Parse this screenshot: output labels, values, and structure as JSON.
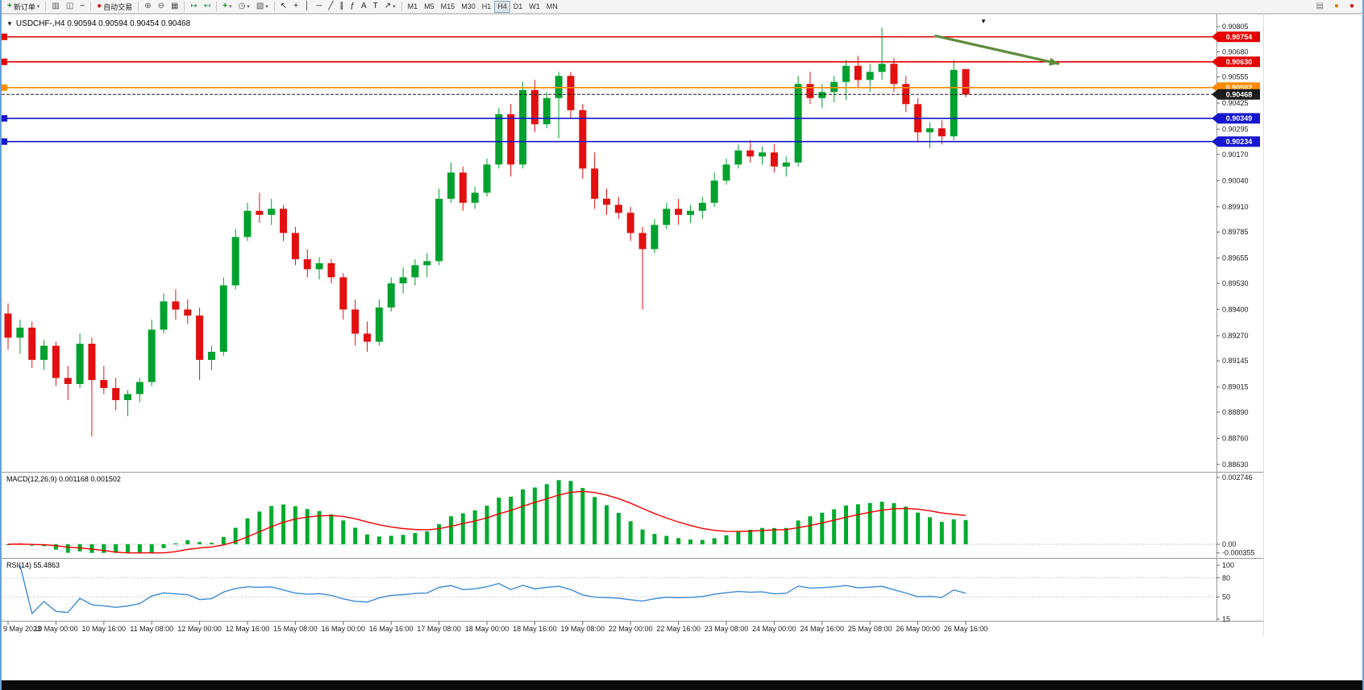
{
  "toolbar": {
    "groups": [
      {
        "items": [
          {
            "name": "new-order-button",
            "icon": "new-order-icon",
            "label": "新订单",
            "dropdown": true
          }
        ]
      },
      {
        "items": [
          {
            "name": "bar-chart-button",
            "icon": "bar-chart-icon"
          },
          {
            "name": "candlestick-chart-button",
            "icon": "candlestick-chart-icon"
          },
          {
            "name": "line-chart-button",
            "icon": "line-chart-icon"
          }
        ]
      },
      {
        "items": [
          {
            "name": "autotrade-button",
            "icon": "autotrade-icon",
            "label": "自动交易"
          }
        ]
      },
      {
        "items": [
          {
            "name": "zoom-in-button",
            "icon": "zoom-in-icon"
          },
          {
            "name": "zoom-out-button",
            "icon": "zoom-out-icon"
          },
          {
            "name": "tile-windows-button",
            "icon": "tile-windows-icon"
          }
        ]
      },
      {
        "items": [
          {
            "name": "auto-scroll-button",
            "icon": "auto-scroll-icon"
          },
          {
            "name": "chart-shift-button",
            "icon": "chart-shift-icon"
          }
        ]
      },
      {
        "items": [
          {
            "name": "add-indicator-button",
            "icon": "add-indicator-icon",
            "dropdown": true
          },
          {
            "name": "periods-button",
            "icon": "periods-icon",
            "dropdown": true
          },
          {
            "name": "templates-button",
            "icon": "templates-icon",
            "dropdown": true
          }
        ]
      },
      {
        "items": [
          {
            "name": "cursor-button",
            "icon": "cursor-icon"
          },
          {
            "name": "crosshair-button",
            "icon": "crosshair-icon"
          },
          {
            "name": "vertical-line-button",
            "icon": "vertical-line-icon"
          },
          {
            "name": "horizontal-line-button",
            "icon": "horizontal-line-icon"
          },
          {
            "name": "trendline-button",
            "icon": "trendline-icon"
          },
          {
            "name": "channel-button",
            "icon": "channel-icon"
          },
          {
            "name": "fibonacci-button",
            "icon": "fibonacci-icon"
          },
          {
            "name": "text-button",
            "icon": "text-icon"
          },
          {
            "name": "text-label-button",
            "icon": "text-label-icon"
          },
          {
            "name": "arrows-button",
            "icon": "arrows-icon",
            "dropdown": true
          }
        ]
      }
    ],
    "timeframes": [
      "M1",
      "M5",
      "M15",
      "M30",
      "H1",
      "H4",
      "D1",
      "W1",
      "MN"
    ],
    "active_timeframe": "H4",
    "right_items": [
      {
        "name": "panel-toggle-button",
        "icon": "panel-icon"
      },
      {
        "name": "alert-indicator",
        "icon": "alert-dot-icon"
      },
      {
        "name": "record-indicator",
        "icon": "record-dot-icon"
      }
    ]
  },
  "chart": {
    "symbol": "USDCHF-",
    "period": "H4",
    "title": "USDCHF-,H4 0.90594 0.90594 0.90454 0.90468",
    "ohlc": {
      "open": "0.90594",
      "high": "0.90594",
      "low": "0.90454",
      "close": "0.90468"
    }
  },
  "indicators": {
    "macd": {
      "title": "MACD(12,26,9) 0.001168 0.001502",
      "params": {
        "fast": 12,
        "slow": 26,
        "signal": 9
      },
      "value_macd": "0.001168",
      "value_signal": "0.001502",
      "axis_labels": [
        "0.002746",
        "0.00",
        "-0.000355"
      ],
      "axis_values": [
        0.002746,
        0,
        -0.000355
      ]
    },
    "rsi": {
      "title": "RSI(14) 55.4863",
      "period": 14,
      "value": "55.4863",
      "axis_labels": [
        "100",
        "80",
        "50",
        "15"
      ],
      "axis_values": [
        100,
        80,
        50,
        15
      ],
      "levels": [
        80,
        50
      ]
    }
  },
  "price_axis": {
    "ticks": [
      "0.90805",
      "0.90680",
      "0.90555",
      "0.90425",
      "0.90295",
      "0.90170",
      "0.90040",
      "0.89910",
      "0.89785",
      "0.89655",
      "0.89530",
      "0.89400",
      "0.89270",
      "0.89145",
      "0.89015",
      "0.88890",
      "0.88760",
      "0.88630"
    ]
  },
  "time_axis": {
    "labels": [
      "9 May 2023",
      "10 May 00:00",
      "10 May 16:00",
      "11 May 08:00",
      "12 May 00:00",
      "12 May 16:00",
      "15 May 08:00",
      "16 May 00:00",
      "16 May 16:00",
      "17 May 08:00",
      "18 May 00:00",
      "18 May 16:00",
      "19 May 08:00",
      "22 May 00:00",
      "22 May 16:00",
      "23 May 08:00",
      "24 May 00:00",
      "24 May 16:00",
      "25 May 08:00",
      "26 May 00:00",
      "26 May 16:00"
    ]
  },
  "chart_data": {
    "type": "candlestick",
    "symbol": "USDCHF-",
    "timeframe": "H4",
    "ylim": [
      0.886,
      0.9087
    ],
    "colors": {
      "up": "#00a12e",
      "down": "#e21010",
      "macd_bar": "#00ab2e",
      "macd_signal": "#f40000",
      "rsi_line": "#3d8bd5"
    },
    "candles": [
      [
        0.8938,
        0.8943,
        0.892,
        0.8926
      ],
      [
        0.8926,
        0.8935,
        0.8918,
        0.8931
      ],
      [
        0.8931,
        0.8934,
        0.8911,
        0.8915
      ],
      [
        0.8915,
        0.8925,
        0.891,
        0.8922
      ],
      [
        0.8922,
        0.8924,
        0.8902,
        0.8906
      ],
      [
        0.8906,
        0.8912,
        0.8895,
        0.8903
      ],
      [
        0.8903,
        0.8928,
        0.8901,
        0.8923
      ],
      [
        0.8923,
        0.8926,
        0.8877,
        0.8905
      ],
      [
        0.8905,
        0.8912,
        0.8898,
        0.8901
      ],
      [
        0.8901,
        0.8906,
        0.889,
        0.8895
      ],
      [
        0.8895,
        0.89,
        0.8887,
        0.8898
      ],
      [
        0.8898,
        0.8906,
        0.8894,
        0.8904
      ],
      [
        0.8904,
        0.8935,
        0.8902,
        0.893
      ],
      [
        0.893,
        0.8948,
        0.8928,
        0.8944
      ],
      [
        0.8944,
        0.895,
        0.8935,
        0.894
      ],
      [
        0.894,
        0.8945,
        0.8933,
        0.8937
      ],
      [
        0.8937,
        0.8941,
        0.8905,
        0.8915
      ],
      [
        0.8915,
        0.8922,
        0.891,
        0.8919
      ],
      [
        0.8919,
        0.8956,
        0.8917,
        0.8952
      ],
      [
        0.8952,
        0.898,
        0.895,
        0.8976
      ],
      [
        0.8976,
        0.8993,
        0.8974,
        0.8989
      ],
      [
        0.8989,
        0.8998,
        0.8983,
        0.8987
      ],
      [
        0.8987,
        0.8995,
        0.8982,
        0.899
      ],
      [
        0.899,
        0.8992,
        0.8974,
        0.8978
      ],
      [
        0.8978,
        0.8981,
        0.8962,
        0.8965
      ],
      [
        0.8965,
        0.897,
        0.8956,
        0.896
      ],
      [
        0.896,
        0.8966,
        0.8955,
        0.8963
      ],
      [
        0.8963,
        0.8965,
        0.8953,
        0.8956
      ],
      [
        0.8956,
        0.8958,
        0.8935,
        0.894
      ],
      [
        0.894,
        0.8945,
        0.8922,
        0.8928
      ],
      [
        0.8928,
        0.8934,
        0.8919,
        0.8924
      ],
      [
        0.8924,
        0.8945,
        0.8922,
        0.8941
      ],
      [
        0.8941,
        0.8956,
        0.8939,
        0.8953
      ],
      [
        0.8953,
        0.8961,
        0.8948,
        0.8956
      ],
      [
        0.8956,
        0.8965,
        0.8952,
        0.8962
      ],
      [
        0.8962,
        0.8968,
        0.8956,
        0.8964
      ],
      [
        0.8964,
        0.9,
        0.8962,
        0.8995
      ],
      [
        0.8995,
        0.9013,
        0.8993,
        0.9008
      ],
      [
        0.9008,
        0.9011,
        0.8989,
        0.8993
      ],
      [
        0.8993,
        0.9001,
        0.899,
        0.8998
      ],
      [
        0.8998,
        0.9015,
        0.8996,
        0.9012
      ],
      [
        0.9012,
        0.904,
        0.901,
        0.9037
      ],
      [
        0.9037,
        0.9042,
        0.9006,
        0.9012
      ],
      [
        0.9012,
        0.9053,
        0.901,
        0.9049
      ],
      [
        0.9049,
        0.9054,
        0.9028,
        0.9032
      ],
      [
        0.9032,
        0.9048,
        0.903,
        0.9045
      ],
      [
        0.9045,
        0.9058,
        0.9025,
        0.9056
      ],
      [
        0.9056,
        0.9058,
        0.9035,
        0.9039
      ],
      [
        0.9039,
        0.9042,
        0.9005,
        0.901
      ],
      [
        0.901,
        0.9018,
        0.899,
        0.8995
      ],
      [
        0.8995,
        0.9,
        0.8987,
        0.8992
      ],
      [
        0.8992,
        0.8996,
        0.8985,
        0.8988
      ],
      [
        0.8988,
        0.8991,
        0.8974,
        0.8978
      ],
      [
        0.8978,
        0.8981,
        0.894,
        0.897
      ],
      [
        0.897,
        0.8985,
        0.8968,
        0.8982
      ],
      [
        0.8982,
        0.8993,
        0.898,
        0.899
      ],
      [
        0.899,
        0.8995,
        0.8982,
        0.8987
      ],
      [
        0.8987,
        0.8992,
        0.8983,
        0.8989
      ],
      [
        0.8989,
        0.8996,
        0.8985,
        0.8993
      ],
      [
        0.8993,
        0.9008,
        0.8991,
        0.9004
      ],
      [
        0.9004,
        0.9015,
        0.9002,
        0.9012
      ],
      [
        0.9012,
        0.9022,
        0.901,
        0.9019
      ],
      [
        0.9019,
        0.9024,
        0.9013,
        0.9016
      ],
      [
        0.9016,
        0.9021,
        0.9012,
        0.9018
      ],
      [
        0.9018,
        0.9022,
        0.9008,
        0.9011
      ],
      [
        0.9011,
        0.9016,
        0.9006,
        0.9013
      ],
      [
        0.9013,
        0.9056,
        0.9011,
        0.9052
      ],
      [
        0.9052,
        0.9058,
        0.9042,
        0.9045
      ],
      [
        0.9045,
        0.9052,
        0.904,
        0.9048
      ],
      [
        0.9048,
        0.9056,
        0.9043,
        0.9053
      ],
      [
        0.9053,
        0.9064,
        0.9044,
        0.9061
      ],
      [
        0.9061,
        0.9066,
        0.905,
        0.9054
      ],
      [
        0.9054,
        0.9062,
        0.9048,
        0.9058
      ],
      [
        0.9058,
        0.908,
        0.9054,
        0.9062
      ],
      [
        0.9062,
        0.9065,
        0.9048,
        0.9052
      ],
      [
        0.9052,
        0.9056,
        0.9038,
        0.9042
      ],
      [
        0.9042,
        0.9045,
        0.9023,
        0.9028
      ],
      [
        0.9028,
        0.9033,
        0.902,
        0.903
      ],
      [
        0.903,
        0.9034,
        0.9022,
        0.9026
      ],
      [
        0.9026,
        0.9064,
        0.9024,
        0.9059
      ],
      [
        0.90594,
        0.90594,
        0.90454,
        0.90468
      ]
    ],
    "hlines": [
      {
        "price": 0.90754,
        "label": "0.90754",
        "color": "#e60000"
      },
      {
        "price": 0.9063,
        "label": "0.90630",
        "color": "#e60000"
      },
      {
        "price": 0.90502,
        "label": "0.90502",
        "color": "#ff8c00"
      },
      {
        "price": 0.90349,
        "label": "0.90349",
        "color": "#1616cf"
      },
      {
        "price": 0.90234,
        "label": "0.90234",
        "color": "#1616cf"
      }
    ],
    "current_price": {
      "value": 0.90468,
      "label": "0.90468",
      "color": "#1c1c1c"
    },
    "trend_arrow": {
      "from_index": 77.4,
      "from_price": 0.9076,
      "to_index": 87.8,
      "to_price": 0.9062,
      "color": "#5e8c3c"
    }
  }
}
